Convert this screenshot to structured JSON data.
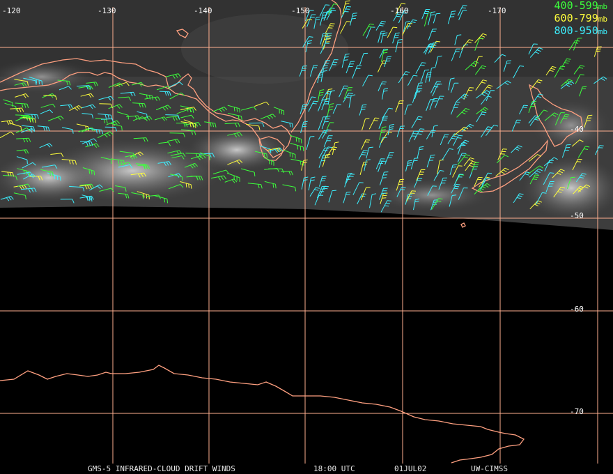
{
  "lon_labels": [
    "-120",
    "-130",
    "-140",
    "-150",
    "-160",
    "-170"
  ],
  "lat_labels": [
    "-40",
    "-50",
    "-60",
    "-70"
  ],
  "legend": [
    {
      "range": "400-599",
      "unit": "mb",
      "color": "#3cff3c"
    },
    {
      "range": "600-799",
      "unit": "mb",
      "color": "#ffff3c"
    },
    {
      "range": "800-950",
      "unit": "mb",
      "color": "#3cf0ff"
    }
  ],
  "footer": {
    "product": "GMS-5 INFRARED-CLOUD DRIFT WINDS",
    "time": "18:00 UTC",
    "date": "01JUL02",
    "source": "UW-CIMSS"
  },
  "colors": {
    "grid": "#ffb090",
    "coast": "#ffa080",
    "background": "#000000"
  }
}
